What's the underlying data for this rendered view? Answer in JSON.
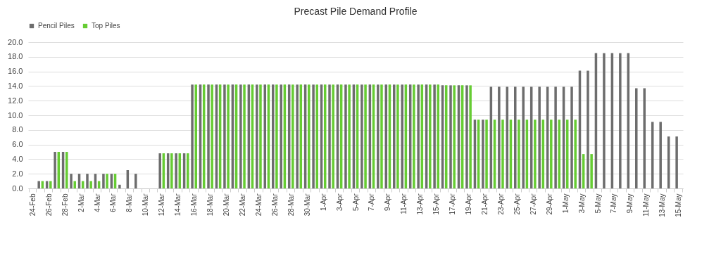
{
  "chart_data": {
    "type": "bar",
    "title": "Precast Pile Demand Profile",
    "categories": [
      "24-Feb",
      null,
      "26-Feb",
      null,
      "28-Feb",
      null,
      "2-Mar",
      null,
      "4-Mar",
      null,
      "6-Mar",
      null,
      "8-Mar",
      null,
      "10-Mar",
      null,
      "12-Mar",
      null,
      "14-Mar",
      null,
      "16-Mar",
      null,
      "18-Mar",
      null,
      "20-Mar",
      null,
      "22-Mar",
      null,
      "24-Mar",
      null,
      "26-Mar",
      null,
      "28-Mar",
      null,
      "30-Mar",
      null,
      "1-Apr",
      null,
      "3-Apr",
      null,
      "5-Apr",
      null,
      "7-Apr",
      null,
      "9-Apr",
      null,
      "11-Apr",
      null,
      "13-Apr",
      null,
      "15-Apr",
      null,
      "17-Apr",
      null,
      "19-Apr",
      null,
      "21-Apr",
      null,
      "23-Apr",
      null,
      "25-Apr",
      null,
      "27-Apr",
      null,
      "29-Apr",
      null,
      "1-May",
      null,
      "3-May",
      null,
      "5-May",
      null,
      "7-May",
      null,
      "9-May",
      null,
      "11-May",
      null,
      "13-May",
      null,
      "15-May"
    ],
    "series": [
      {
        "name": "Pencil Piles",
        "color": "#6d6d6d",
        "values": [
          0,
          1,
          1,
          5,
          5,
          2,
          2,
          2,
          2,
          2,
          2,
          0.5,
          2.5,
          2,
          0,
          0,
          4.8,
          4.8,
          4.8,
          4.8,
          14.2,
          14.2,
          14.2,
          14.2,
          14.2,
          14.2,
          14.2,
          14.2,
          14.2,
          14.2,
          14.2,
          14.2,
          14.2,
          14.2,
          14.2,
          14.2,
          14.2,
          14.2,
          14.2,
          14.2,
          14.2,
          14.2,
          14.2,
          14.2,
          14.2,
          14.2,
          14.2,
          14.2,
          14.2,
          14.2,
          14.2,
          14.1,
          14.1,
          14.1,
          14.1,
          9.4,
          9.4,
          13.9,
          13.9,
          13.9,
          13.9,
          13.9,
          13.9,
          13.9,
          13.9,
          13.9,
          13.9,
          13.9,
          16.1,
          16.1,
          18.5,
          18.5,
          18.5,
          18.5,
          18.5,
          13.7,
          13.7,
          9.1,
          9.1,
          7.1,
          7.1
        ]
      },
      {
        "name": "Top Piles",
        "color": "#66cc33",
        "values": [
          0,
          1,
          1,
          5,
          5,
          1,
          1,
          1,
          1,
          2,
          2,
          0,
          0,
          0,
          0,
          0,
          4.8,
          4.8,
          4.8,
          4.8,
          14.2,
          14.2,
          14.2,
          14.2,
          14.2,
          14.2,
          14.2,
          14.2,
          14.2,
          14.2,
          14.2,
          14.2,
          14.2,
          14.2,
          14.2,
          14.2,
          14.2,
          14.2,
          14.2,
          14.2,
          14.2,
          14.2,
          14.2,
          14.2,
          14.2,
          14.2,
          14.2,
          14.2,
          14.2,
          14.2,
          14.2,
          14.1,
          14.1,
          14.1,
          14.1,
          9.4,
          9.4,
          9.4,
          9.4,
          9.4,
          9.4,
          9.4,
          9.4,
          9.4,
          9.4,
          9.4,
          9.4,
          9.4,
          4.7,
          4.7,
          0,
          0,
          0,
          0,
          0,
          0,
          0,
          0,
          0,
          0,
          0
        ]
      }
    ],
    "ylim": [
      0,
      20
    ],
    "yticks": [
      {
        "value": 0,
        "label": "0.0"
      },
      {
        "value": 2,
        "label": "2.0"
      },
      {
        "value": 4,
        "label": "4.0"
      },
      {
        "value": 6,
        "label": "6.0"
      },
      {
        "value": 8,
        "label": "8.0"
      },
      {
        "value": 10,
        "label": "10.0"
      },
      {
        "value": 12,
        "label": "12.0"
      },
      {
        "value": 14,
        "label": "14.0"
      },
      {
        "value": 16,
        "label": "16.0"
      },
      {
        "value": 18,
        "label": "18.0"
      },
      {
        "value": 20,
        "label": "20.0"
      }
    ],
    "grid": "y",
    "legend": "top"
  }
}
